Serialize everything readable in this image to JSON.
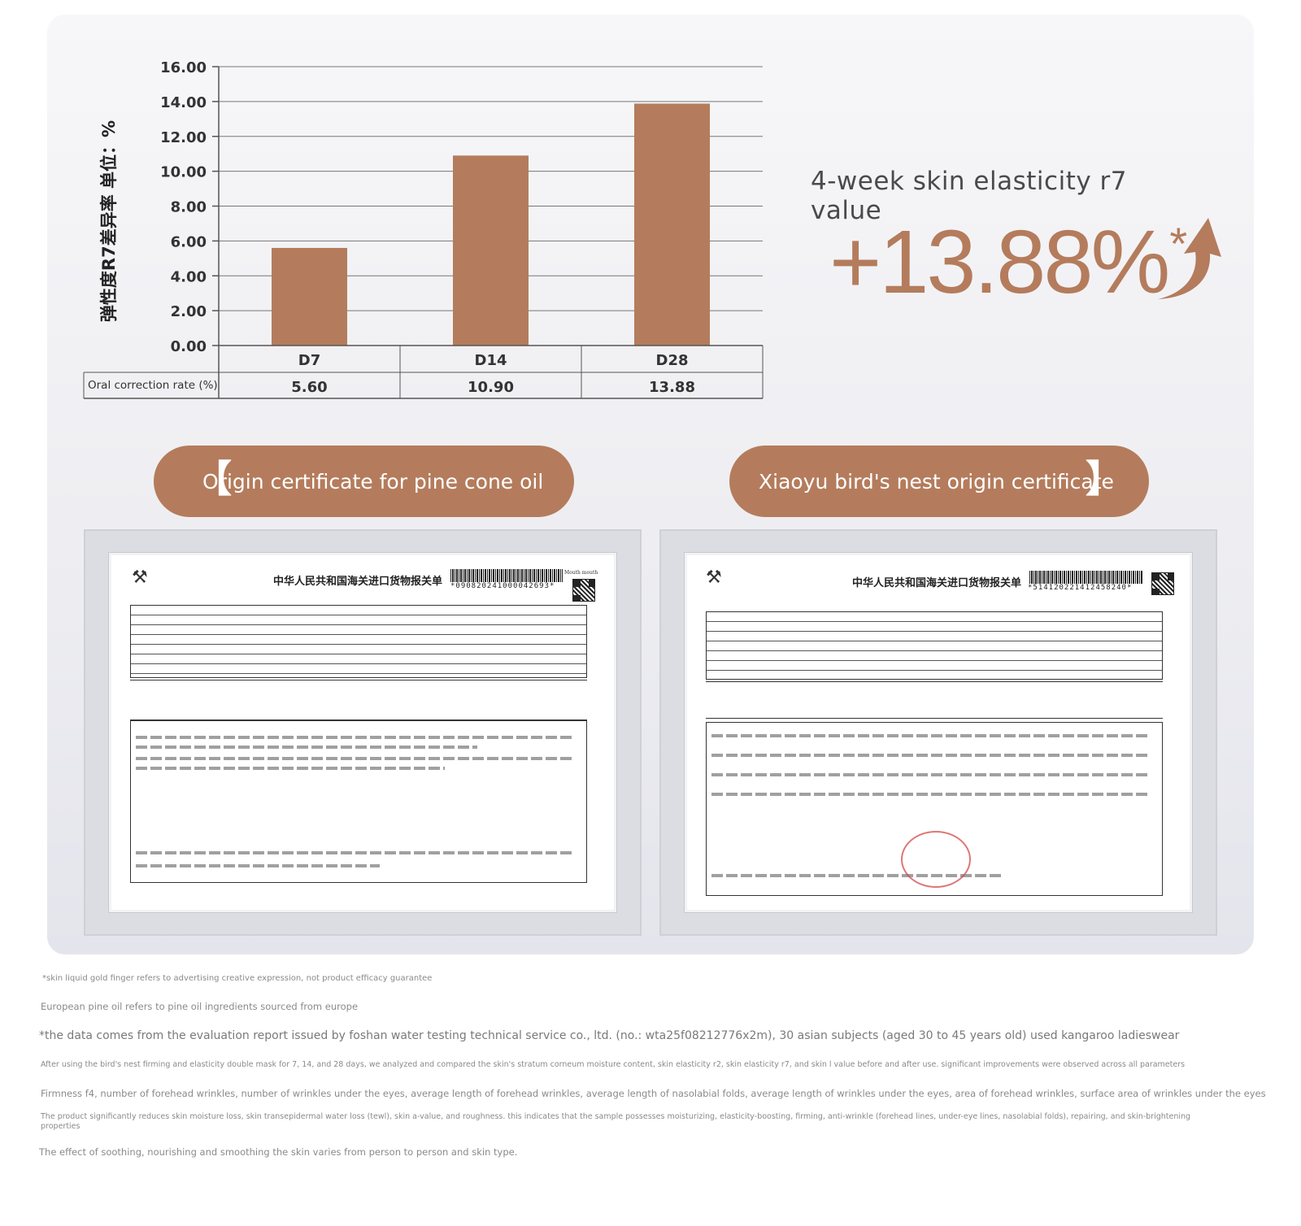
{
  "chart_data": {
    "type": "bar",
    "categories": [
      "D7",
      "D14",
      "D28"
    ],
    "values": [
      5.6,
      10.9,
      13.88
    ],
    "value_labels": [
      "5.60",
      "10.90",
      "13.88"
    ],
    "ylabel": "弹性度R7差异率 单位：%",
    "ylim": [
      0,
      16
    ],
    "yticks": [
      "0.00",
      "2.00",
      "4.00",
      "6.00",
      "8.00",
      "10.00",
      "12.00",
      "14.00",
      "16.00"
    ],
    "table_row_label": "Oral correction rate (%)",
    "grid": true,
    "bar_color": "#b47c5c"
  },
  "highlight": {
    "headline": "4-week skin elasticity r7 value",
    "value": "+13.88%",
    "asterisk": "*",
    "arrow_icon": "up-arrow-icon",
    "accent_color": "#b47c5c"
  },
  "certificates": [
    {
      "label": "Origin certificate for pine cone oil",
      "bracket": "【",
      "doc_title": "中华人民共和国海关进口货物报关单",
      "barcode_number": "*090820241000042693*",
      "barcode_note": "Mouth mouth"
    },
    {
      "label": "Xiaoyu bird's nest origin certificate",
      "bracket": "】",
      "doc_title": "中华人民共和国海关进口货物报关单",
      "barcode_number": "*514120221412458240*"
    }
  ],
  "footnotes": [
    "*skin liquid gold finger refers to advertising creative expression, not product efficacy guarantee",
    "European pine oil refers to pine oil ingredients sourced from europe",
    "*the data comes from the evaluation report issued by foshan water testing technical service co., ltd. (no.: wta25f08212776x2m), 30 asian subjects (aged 30 to 45 years old) used kangaroo ladieswear",
    "After using the bird's nest firming and elasticity double mask for 7, 14, and 28 days, we analyzed and compared the skin's stratum corneum moisture content, skin elasticity r2, skin elasticity r7, and skin l value before and after use. significant improvements were observed across all parameters",
    "Firmness f4, number of forehead wrinkles, number of wrinkles under the eyes, average length of forehead wrinkles, average length of nasolabial folds, average length of wrinkles under the eyes, area of forehead wrinkles, surface area of wrinkles under the eyes",
    "The product significantly reduces skin moisture loss, skin transepidermal water loss (tewl), skin a-value, and roughness. this indicates that the sample possesses moisturizing, elasticity-boosting, firming, anti-wrinkle (forehead lines, under-eye lines, nasolabial folds), repairing, and skin-brightening properties",
    "The effect of soothing, nourishing and smoothing the skin varies from person to person and skin type."
  ]
}
